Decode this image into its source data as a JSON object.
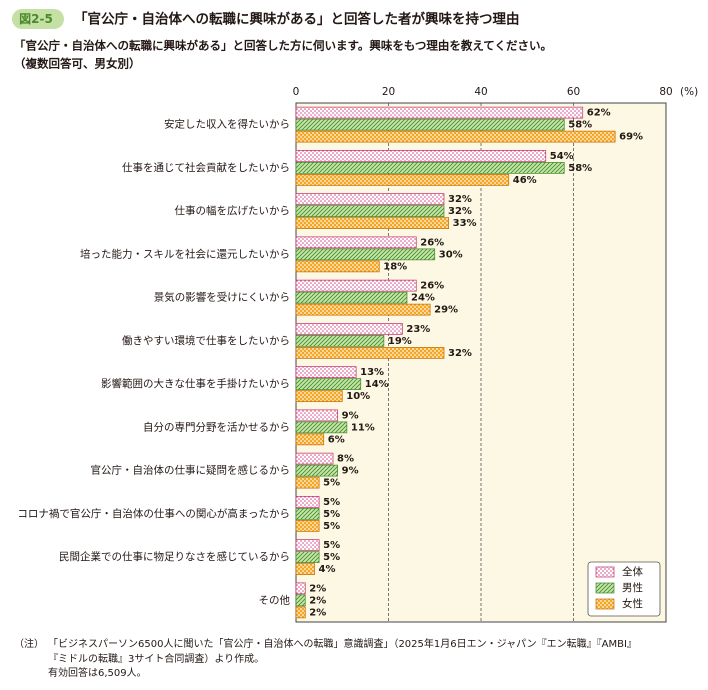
{
  "chart_data": {
    "type": "bar",
    "orientation": "horizontal",
    "badge": "図2-5",
    "title": "「官公庁・自治体への転職に興味がある」と回答した者が興味を持つ理由",
    "subtitle": [
      "「官公庁・自治体への転職に興味がある」と回答した方に伺います。興味をもつ理由を教えてください。",
      "（複数回答可、男女別）"
    ],
    "categories": [
      "安定した収入を得たいから",
      "仕事を通じて社会貢献をしたいから",
      "仕事の幅を広げたいから",
      "培った能力・スキルを社会に還元したいから",
      "景気の影響を受けにくいから",
      "働きやすい環境で仕事をしたいから",
      "影響範囲の大きな仕事を手掛けたいから",
      "自分の専門分野を活かせるから",
      "官公庁・自治体の仕事に疑問を感じるから",
      "コロナ禍で官公庁・自治体の仕事への関心が高まったから",
      "民間企業での仕事に物足りなさを感じているから",
      "その他"
    ],
    "series": [
      {
        "name": "全体",
        "color": "#f9d5e5",
        "values": [
          62,
          54,
          32,
          26,
          26,
          23,
          13,
          9,
          8,
          5,
          5,
          2
        ],
        "value_labels": [
          "62%",
          "54%",
          "32%",
          "26%",
          "26%",
          "23%",
          "13%",
          "9%",
          "8%",
          "5%",
          "5%",
          "2%"
        ]
      },
      {
        "name": "男性",
        "color": "#c7e5a8",
        "values": [
          58,
          58,
          32,
          30,
          24,
          19,
          14,
          11,
          9,
          5,
          5,
          2
        ],
        "value_labels": [
          "58%",
          "58%",
          "32%",
          "30%",
          "24%",
          "19%",
          "14%",
          "11%",
          "9%",
          "5%",
          "5%",
          "2%"
        ]
      },
      {
        "name": "女性",
        "color": "#f5a623",
        "values": [
          69,
          46,
          33,
          18,
          29,
          32,
          10,
          6,
          5,
          5,
          4,
          2
        ],
        "value_labels": [
          "69%",
          "46%",
          "33%",
          "18%",
          "29%",
          "32%",
          "10%",
          "6%",
          "5%",
          "5%",
          "4%",
          "2%"
        ]
      }
    ],
    "xlim": [
      0,
      80
    ],
    "xticks": [
      0,
      20,
      40,
      60,
      80
    ],
    "x_unit": "(%)",
    "grid": true,
    "legend": "bottom-right",
    "notes": {
      "label": "（注）",
      "lines": [
        "「ビジネスパーソン6500人に聞いた「官公庁・自治体への転職」意識調査」（2025年1月6日エン・ジャパン『エン転職』『AMBI』",
        "『ミドルの転職』3サイト合同調査）より作成。",
        "有効回答は6,509人。"
      ]
    }
  }
}
